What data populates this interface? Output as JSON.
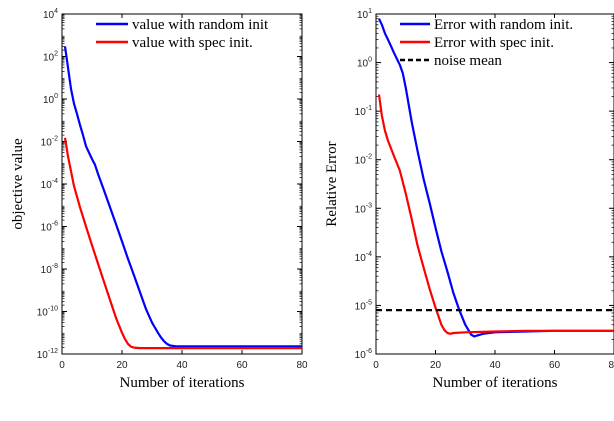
{
  "chart_data": [
    {
      "type": "line",
      "title": "",
      "xlabel": "Number of iterations",
      "ylabel": "objective value",
      "xlim": [
        0,
        80
      ],
      "ylim": [
        1e-12,
        10000.0
      ],
      "yscale": "log",
      "x_ticks": [
        "0",
        "20",
        "40",
        "60",
        "80"
      ],
      "y_ticks": [
        {
          "base": "10",
          "exp": "4"
        },
        {
          "base": "10",
          "exp": "2"
        },
        {
          "base": "10",
          "exp": "0"
        },
        {
          "base": "10",
          "exp": "-2"
        },
        {
          "base": "10",
          "exp": "-4"
        },
        {
          "base": "10",
          "exp": "-6"
        },
        {
          "base": "10",
          "exp": "-8"
        },
        {
          "base": "10",
          "exp": "-10"
        },
        {
          "base": "10",
          "exp": "-12"
        }
      ],
      "y_tick_values": [
        10000.0,
        100.0,
        1,
        0.01,
        0.0001,
        1e-06,
        1e-08,
        1e-10,
        1e-12
      ],
      "grid": false,
      "legend_position": "top-right",
      "series": [
        {
          "name": "value with random init",
          "color": "#0000ff",
          "style": "solid",
          "x": [
            1,
            2,
            3,
            4,
            5,
            6,
            7,
            8,
            9,
            10,
            11,
            12,
            14,
            16,
            18,
            20,
            22,
            24,
            26,
            28,
            30,
            32,
            33,
            34,
            35,
            36,
            38,
            40,
            50,
            60,
            70,
            80
          ],
          "y": [
            300,
            30,
            3,
            0.6,
            0.2,
            0.06,
            0.02,
            0.006,
            0.003,
            0.0015,
            0.0008,
            0.0003,
            5e-05,
            8e-06,
            1.3e-06,
            2e-07,
            3e-08,
            5e-09,
            8e-10,
            1.3e-10,
            3e-11,
            1e-11,
            6e-12,
            4e-12,
            3e-12,
            2.5e-12,
            2.3e-12,
            2.3e-12,
            2.3e-12,
            2.3e-12,
            2.3e-12,
            2.3e-12
          ]
        },
        {
          "name": "value with spec init.",
          "color": "#ff0000",
          "style": "solid",
          "x": [
            1,
            2,
            3,
            4,
            6,
            8,
            10,
            12,
            14,
            16,
            18,
            20,
            21,
            22,
            23,
            24,
            26,
            30,
            40,
            50,
            60,
            70,
            80
          ],
          "y": [
            0.015,
            0.002,
            0.0004,
            8e-05,
            8e-06,
            1e-06,
            1.3e-07,
            1.8e-08,
            2.5e-09,
            3.5e-10,
            5e-11,
            1e-11,
            5e-12,
            3e-12,
            2.2e-12,
            2e-12,
            1.9e-12,
            1.9e-12,
            1.9e-12,
            1.9e-12,
            1.9e-12,
            1.9e-12,
            1.9e-12
          ]
        }
      ]
    },
    {
      "type": "line",
      "title": "",
      "xlabel": "Number of iterations",
      "ylabel": "Relative Error",
      "xlim": [
        0,
        80
      ],
      "ylim": [
        1e-06,
        10
      ],
      "yscale": "log",
      "x_ticks": [
        "0",
        "20",
        "40",
        "60",
        "80"
      ],
      "y_ticks": [
        {
          "base": "10",
          "exp": "1"
        },
        {
          "base": "10",
          "exp": "0"
        },
        {
          "base": "10",
          "exp": "-1"
        },
        {
          "base": "10",
          "exp": "-2"
        },
        {
          "base": "10",
          "exp": "-3"
        },
        {
          "base": "10",
          "exp": "-4"
        },
        {
          "base": "10",
          "exp": "-5"
        },
        {
          "base": "10",
          "exp": "-6"
        }
      ],
      "y_tick_values": [
        10,
        1,
        0.1,
        0.01,
        0.001,
        0.0001,
        1e-05,
        1e-06
      ],
      "grid": false,
      "legend_position": "top-right",
      "series": [
        {
          "name": "Error with random init.",
          "color": "#0000ff",
          "style": "solid",
          "x": [
            1,
            2,
            3,
            4,
            5,
            6,
            7,
            8,
            9,
            10,
            12,
            14,
            16,
            18,
            20,
            22,
            24,
            26,
            28,
            30,
            32,
            33,
            34,
            35,
            36,
            38,
            40,
            50,
            60,
            70,
            80
          ],
          "y": [
            8,
            6,
            4,
            3,
            2.2,
            1.6,
            1.2,
            0.9,
            0.6,
            0.3,
            0.06,
            0.015,
            0.004,
            0.0013,
            0.0004,
            0.00013,
            5e-05,
            1.8e-05,
            8e-06,
            4e-06,
            2.5e-06,
            2.3e-06,
            2.4e-06,
            2.5e-06,
            2.6e-06,
            2.7e-06,
            2.8e-06,
            2.9e-06,
            3e-06,
            3e-06,
            3e-06
          ]
        },
        {
          "name": "Error with spec init.",
          "color": "#ff0000",
          "style": "solid",
          "x": [
            1,
            2,
            3,
            4,
            6,
            8,
            10,
            12,
            14,
            16,
            18,
            20,
            21,
            22,
            23,
            24,
            25,
            26,
            30,
            40,
            50,
            60,
            70,
            80
          ],
          "y": [
            0.22,
            0.08,
            0.04,
            0.025,
            0.012,
            0.006,
            0.002,
            0.0006,
            0.00017,
            6e-05,
            2.2e-05,
            9e-06,
            6e-06,
            4e-06,
            3.1e-06,
            2.7e-06,
            2.6e-06,
            2.7e-06,
            2.8e-06,
            2.9e-06,
            3e-06,
            3e-06,
            3e-06,
            3e-06
          ]
        },
        {
          "name": "noise mean",
          "color": "#000000",
          "style": "dashed",
          "x": [
            0,
            80
          ],
          "y": [
            8e-06,
            8e-06
          ]
        }
      ]
    }
  ]
}
